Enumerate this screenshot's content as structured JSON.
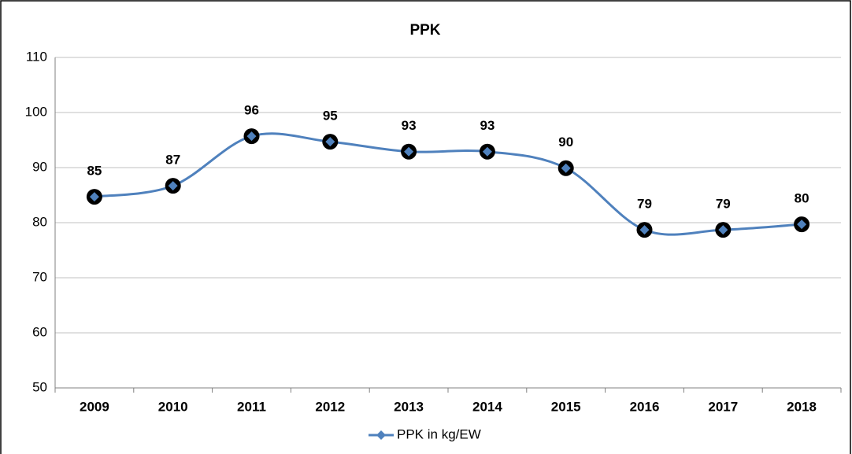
{
  "chart_data": {
    "type": "line",
    "title": "PPK",
    "categories": [
      "2009",
      "2010",
      "2011",
      "2012",
      "2013",
      "2014",
      "2015",
      "2016",
      "2017",
      "2018"
    ],
    "series": [
      {
        "name": "PPK in kg/EW",
        "color": "#4f81bd",
        "values": [
          84.7,
          86.7,
          95.7,
          94.7,
          92.9,
          92.9,
          89.9,
          78.7,
          78.7,
          79.7
        ],
        "value_labels": [
          "85",
          "87",
          "96",
          "95",
          "93",
          "93",
          "90",
          "79",
          "79",
          "80"
        ]
      }
    ],
    "ylim": [
      50,
      110
    ],
    "yticks": [
      50,
      60,
      70,
      80,
      90,
      100,
      110
    ],
    "grid": true,
    "smooth": true,
    "legend": "bottom"
  }
}
